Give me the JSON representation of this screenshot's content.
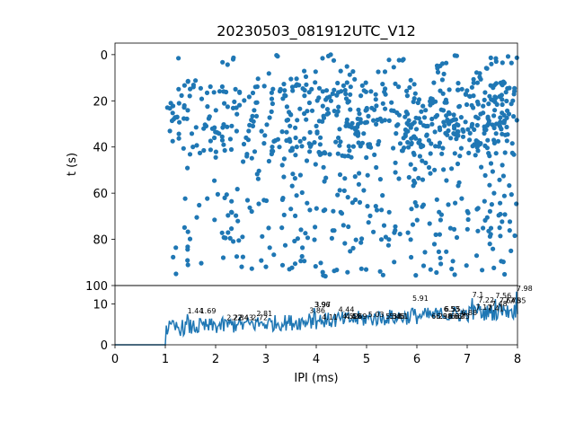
{
  "chart_data": [
    {
      "type": "scatter",
      "title": "20230503_081912UTC_V12",
      "xlabel": "",
      "ylabel": "t (s)",
      "xlim": [
        0,
        8
      ],
      "ylim": [
        100,
        -5
      ],
      "y_inverted": true,
      "yticks": [
        0,
        20,
        40,
        60,
        80,
        100
      ],
      "grid": false,
      "marker_color": "#1f77b4",
      "point_count_estimate": 900,
      "point_x_range": [
        1.0,
        8.0
      ],
      "point_y_range": [
        0,
        96
      ],
      "density_note": "denser at higher IPI; dense bands near t=15-45"
    },
    {
      "type": "line",
      "title": "",
      "xlabel": "IPI (ms)",
      "ylabel": "",
      "xlim": [
        0,
        8
      ],
      "ylim": [
        0,
        14.5
      ],
      "xticks": [
        0,
        1,
        2,
        3,
        4,
        5,
        6,
        7,
        8
      ],
      "yticks": [
        0,
        10
      ],
      "line_color": "#1f77b4",
      "baseline_until_x": 1.0,
      "peak_labels": [
        {
          "x": 1.44,
          "y": 7.5,
          "label": "1.44"
        },
        {
          "x": 1.69,
          "y": 7.5,
          "label": "1.69"
        },
        {
          "x": 2.22,
          "y": 5.8,
          "label": "2.22"
        },
        {
          "x": 2.34,
          "y": 5.8,
          "label": "2.34"
        },
        {
          "x": 2.43,
          "y": 5.8,
          "label": "2.43"
        },
        {
          "x": 2.72,
          "y": 5.8,
          "label": "2.72"
        },
        {
          "x": 2.81,
          "y": 6.8,
          "label": "2.81"
        },
        {
          "x": 3.86,
          "y": 7.6,
          "label": "3.86"
        },
        {
          "x": 3.96,
          "y": 9.0,
          "label": "3.96"
        },
        {
          "x": 3.97,
          "y": 9.0,
          "label": "3.97"
        },
        {
          "x": 4.11,
          "y": 5.9,
          "label": "4.11"
        },
        {
          "x": 4.44,
          "y": 7.8,
          "label": "4.44"
        },
        {
          "x": 4.52,
          "y": 6.1,
          "label": "4.52"
        },
        {
          "x": 4.58,
          "y": 6.1,
          "label": "4.58"
        },
        {
          "x": 4.69,
          "y": 6.1,
          "label": "4.69"
        },
        {
          "x": 5.03,
          "y": 6.6,
          "label": "5.03"
        },
        {
          "x": 5.38,
          "y": 6.1,
          "label": "5.38"
        },
        {
          "x": 5.45,
          "y": 6.1,
          "label": "5.45"
        },
        {
          "x": 5.51,
          "y": 6.1,
          "label": "5.51"
        },
        {
          "x": 5.91,
          "y": 10.5,
          "label": "5.91"
        },
        {
          "x": 6.29,
          "y": 6.1,
          "label": "6.29"
        },
        {
          "x": 6.38,
          "y": 6.1,
          "label": "6.38"
        },
        {
          "x": 6.53,
          "y": 7.9,
          "label": "6.53"
        },
        {
          "x": 6.55,
          "y": 7.9,
          "label": "6.55"
        },
        {
          "x": 6.62,
          "y": 6.1,
          "label": "6.62"
        },
        {
          "x": 6.67,
          "y": 6.1,
          "label": "6.67"
        },
        {
          "x": 6.73,
          "y": 6.1,
          "label": "6.73"
        },
        {
          "x": 6.88,
          "y": 7.0,
          "label": "6.88"
        },
        {
          "x": 7.1,
          "y": 11.4,
          "label": "7.1"
        },
        {
          "x": 7.17,
          "y": 8.3,
          "label": "7.17"
        },
        {
          "x": 7.22,
          "y": 10.1,
          "label": "7.22"
        },
        {
          "x": 7.41,
          "y": 8.0,
          "label": "7.41"
        },
        {
          "x": 7.48,
          "y": 9.2,
          "label": "7.48"
        },
        {
          "x": 7.56,
          "y": 11.2,
          "label": "7.56"
        },
        {
          "x": 7.64,
          "y": 10.0,
          "label": "7.64"
        },
        {
          "x": 7.75,
          "y": 10.0,
          "label": "7.75"
        },
        {
          "x": 7.85,
          "y": 10.0,
          "label": "7.85"
        },
        {
          "x": 7.98,
          "y": 13.0,
          "label": "7.98"
        }
      ]
    }
  ]
}
